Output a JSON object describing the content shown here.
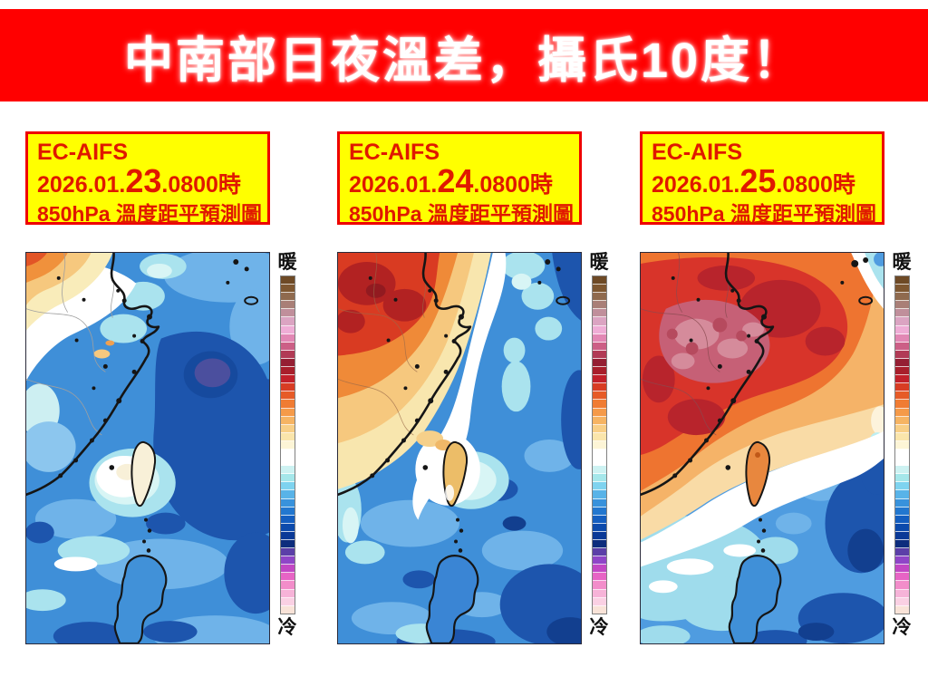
{
  "banner": {
    "title": "中南部日夜溫差，攝氏10度！"
  },
  "panels": [
    {
      "model": "EC-AIFS",
      "date_prefix": "2026.01.",
      "date_day": "23",
      "date_suffix": ".0800時",
      "subtitle": "850hPa 溫度距平預測圖",
      "colorbar_warm_label": "暖",
      "colorbar_cold_label": "冷"
    },
    {
      "model": "EC-AIFS",
      "date_prefix": "2026.01.",
      "date_day": "24",
      "date_suffix": ".0800時",
      "subtitle": "850hPa 溫度距平預測圖",
      "colorbar_warm_label": "暖",
      "colorbar_cold_label": "冷"
    },
    {
      "model": "EC-AIFS",
      "date_prefix": "2026.01.",
      "date_day": "25",
      "date_suffix": ".0800時",
      "subtitle": "850hPa 溫度距平預測圖",
      "colorbar_warm_label": "暖",
      "colorbar_cold_label": "冷"
    }
  ],
  "colorbar": {
    "colors": [
      "#6e4a26",
      "#7e5731",
      "#8f6a4e",
      "#a97f77",
      "#c08f9b",
      "#dba4c2",
      "#efadd6",
      "#e287b4",
      "#cc5f86",
      "#b13a55",
      "#951f33",
      "#a81e2b",
      "#c2202a",
      "#d83c23",
      "#e65b27",
      "#f07c33",
      "#f59a49",
      "#f6b463",
      "#f8cf87",
      "#fae5ab",
      "#fdf5d6",
      "#ffffff",
      "#ffffff",
      "#cdf2f2",
      "#a5e7ea",
      "#7ed3ef",
      "#58b3e8",
      "#3892dc",
      "#2277cf",
      "#145ec0",
      "#0c4aac",
      "#0a3997",
      "#0d2d7d",
      "#5b3fa8",
      "#8f45c8",
      "#c247c4",
      "#e764c5",
      "#f28dca",
      "#f6b3d8",
      "#fad0e3",
      "#f9e3d8"
    ]
  },
  "colors": {
    "banner_bg": "#ff0000",
    "banner_text": "#ffffff",
    "label_box_bg": "#ffff00",
    "label_box_border": "#ee0000",
    "label_text": "#e01800"
  }
}
